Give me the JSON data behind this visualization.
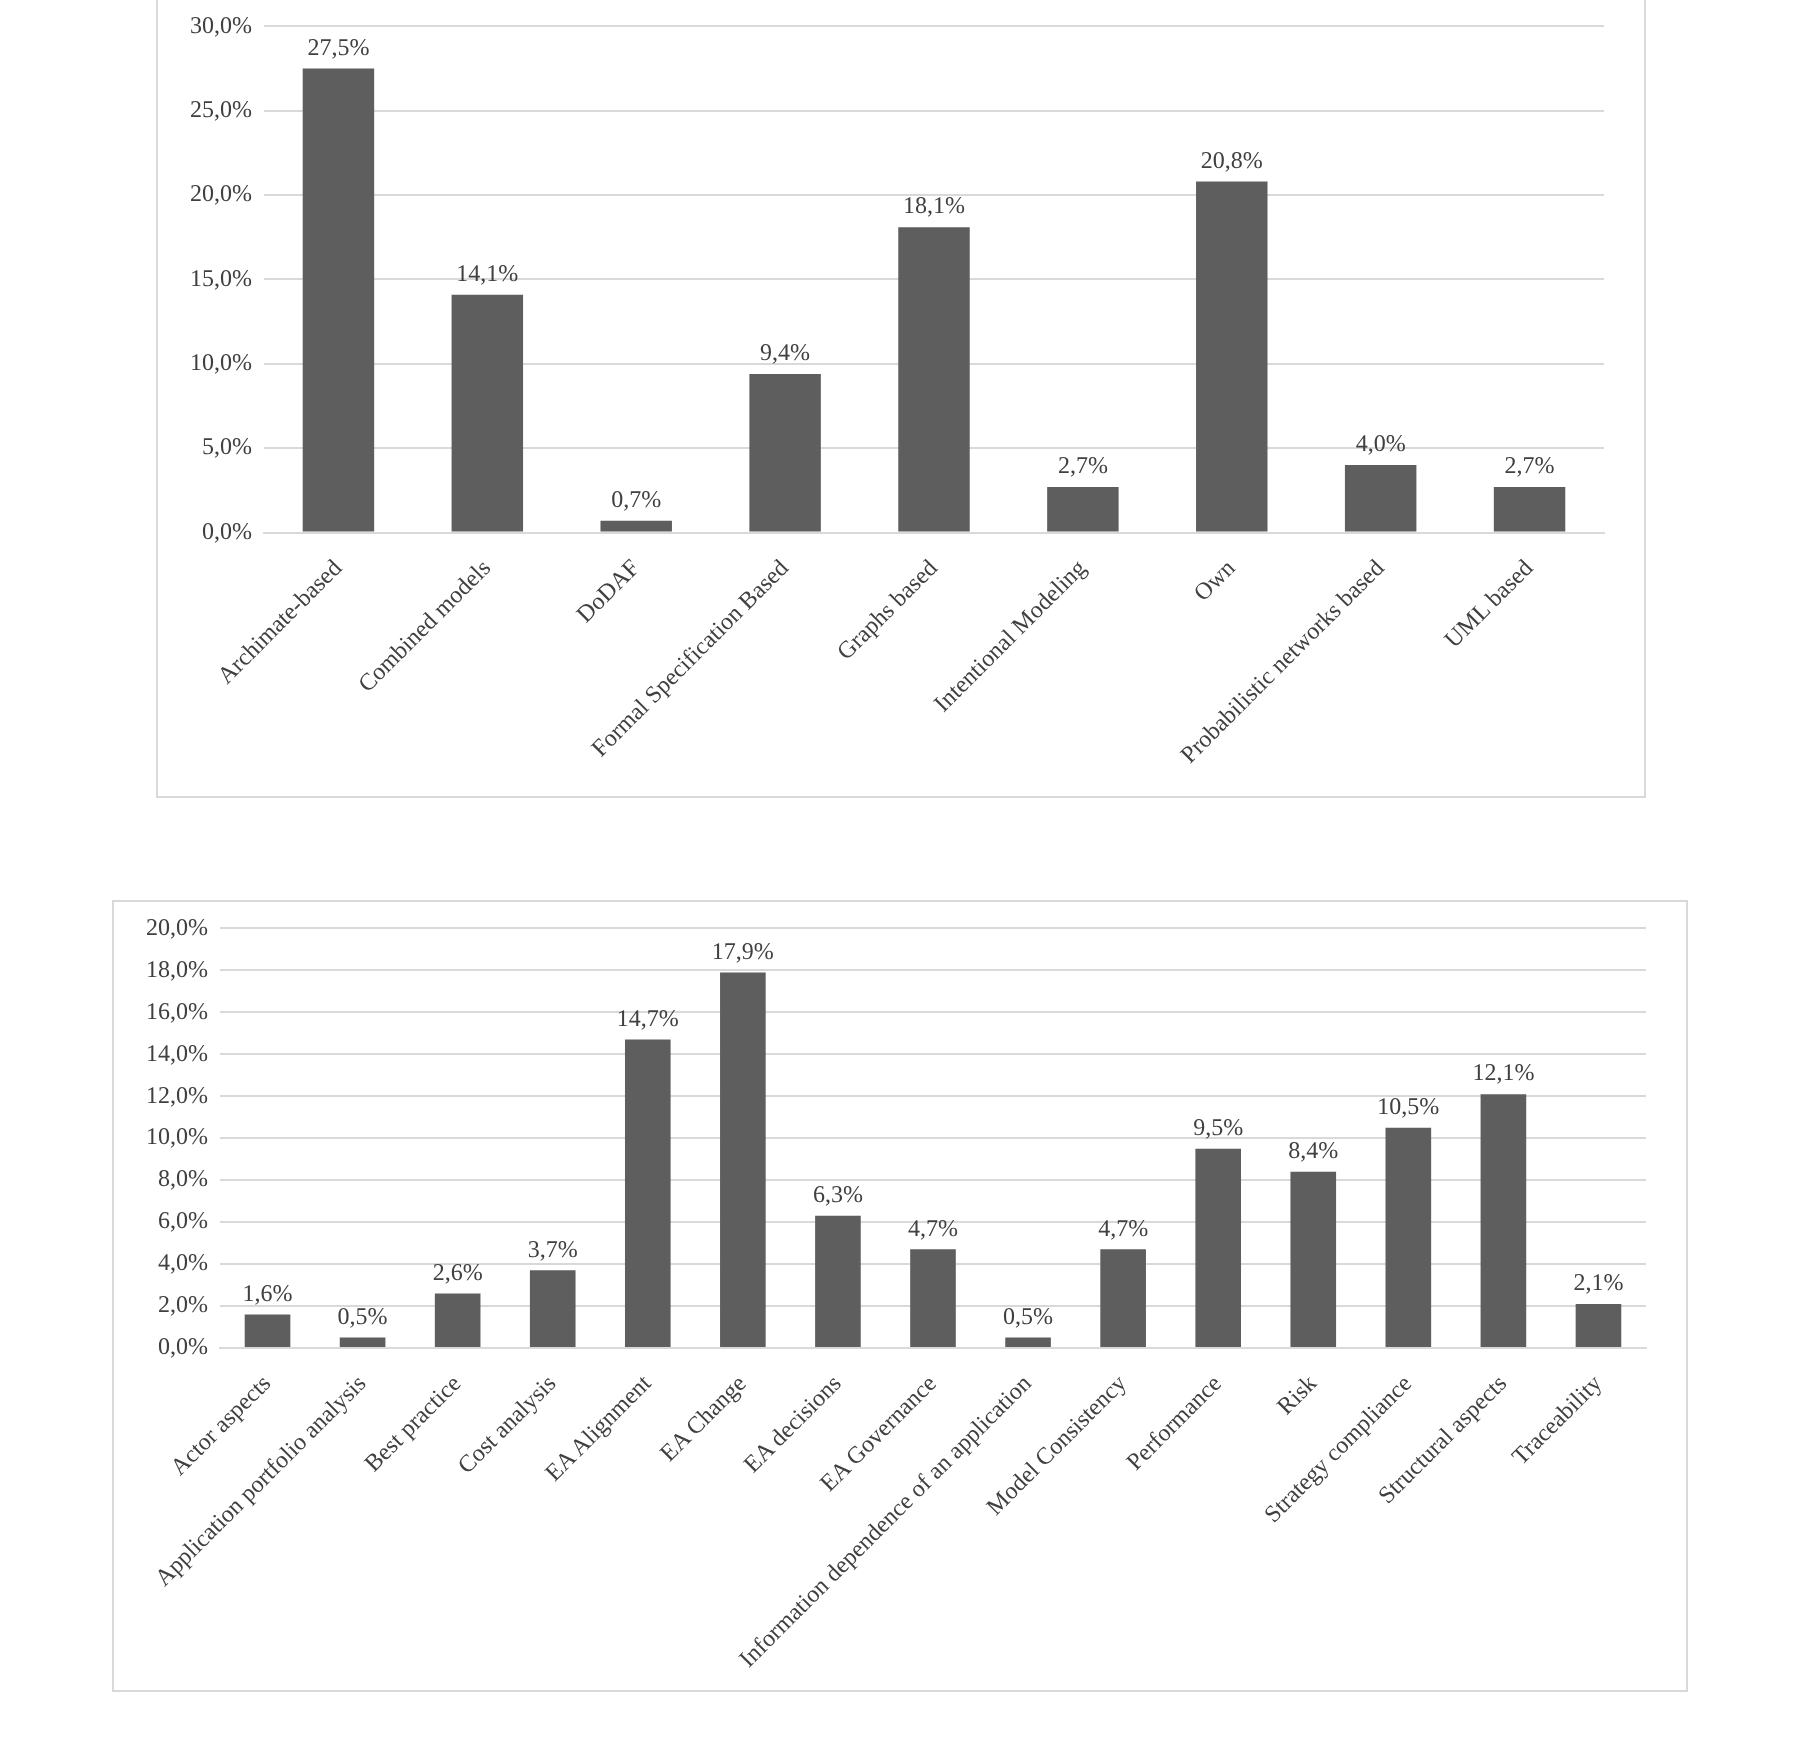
{
  "chart_data": [
    {
      "type": "bar",
      "categories": [
        "Archimate-based",
        "Combined models",
        "DoDAF",
        "Formal Specification Based",
        "Graphs based",
        "Intentional Modeling",
        "Own",
        "Probabilistic networks based",
        "UML based"
      ],
      "series": [
        {
          "color": "#5e5e5e",
          "values": [
            27.5,
            14.1,
            0.7,
            9.4,
            18.1,
            2.7,
            20.8,
            4.0,
            2.7
          ],
          "value_labels": [
            "27,5%",
            "14,1%",
            "0,7%",
            "9,4%",
            "18,1%",
            "2,7%",
            "20,8%",
            "4,0%",
            "2,7%"
          ]
        }
      ],
      "ylim": [
        0,
        30
      ],
      "yticks": [
        {
          "value": 0,
          "label": "0,0%"
        },
        {
          "value": 5,
          "label": "5,0%"
        },
        {
          "value": 10,
          "label": "10,0%"
        },
        {
          "value": 15,
          "label": "15,0%"
        },
        {
          "value": 20,
          "label": "20,0%"
        },
        {
          "value": 25,
          "label": "25,0%"
        },
        {
          "value": 30,
          "label": "30,0%"
        }
      ],
      "grid": "y",
      "legend": false
    },
    {
      "type": "bar",
      "categories": [
        "Actor aspects",
        "Application portfolio analysis",
        "Best practice",
        "Cost analysis",
        "EA Alignment",
        "EA Change",
        "EA decisions",
        "EA Governance",
        "Information dependence of an application",
        "Model Consistency",
        "Performance",
        "Risk",
        "Strategy compliance",
        "Structural aspects",
        "Traceability"
      ],
      "series": [
        {
          "color": "#5e5e5e",
          "values": [
            1.6,
            0.5,
            2.6,
            3.7,
            14.7,
            17.9,
            6.3,
            4.7,
            0.5,
            4.7,
            9.5,
            8.4,
            10.5,
            12.1,
            2.1
          ],
          "value_labels": [
            "1,6%",
            "0,5%",
            "2,6%",
            "3,7%",
            "14,7%",
            "17,9%",
            "6,3%",
            "4,7%",
            "0,5%",
            "4,7%",
            "9,5%",
            "8,4%",
            "10,5%",
            "12,1%",
            "2,1%"
          ]
        }
      ],
      "ylim": [
        0,
        20
      ],
      "yticks": [
        {
          "value": 0,
          "label": "0,0%"
        },
        {
          "value": 2,
          "label": "2,0%"
        },
        {
          "value": 4,
          "label": "4,0%"
        },
        {
          "value": 6,
          "label": "6,0%"
        },
        {
          "value": 8,
          "label": "8,0%"
        },
        {
          "value": 10,
          "label": "10,0%"
        },
        {
          "value": 12,
          "label": "12,0%"
        },
        {
          "value": 14,
          "label": "14,0%"
        },
        {
          "value": 16,
          "label": "16,0%"
        },
        {
          "value": 18,
          "label": "18,0%"
        },
        {
          "value": 20,
          "label": "20,0%"
        }
      ],
      "grid": "y",
      "legend": false
    }
  ]
}
